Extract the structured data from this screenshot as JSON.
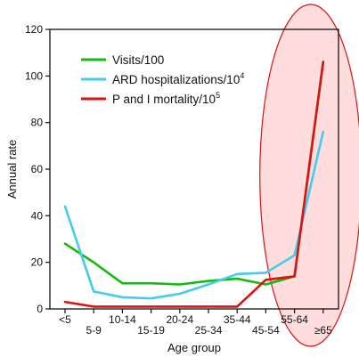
{
  "chart_data": {
    "type": "line",
    "xlabel": "Age group",
    "ylabel": "Annual rate",
    "ylim": [
      0,
      120
    ],
    "yticks": [
      0,
      20,
      40,
      60,
      80,
      100,
      120
    ],
    "categories": [
      "<5",
      "5-9",
      "10-14",
      "15-19",
      "20-24",
      "25-34",
      "35-44",
      "45-54",
      "55-64",
      "≥65"
    ],
    "legend_position": "top-left",
    "grid": false,
    "series": [
      {
        "name": "Visits/100",
        "legend_base": "Visits/100",
        "legend_sup": "",
        "color": "#11bb11",
        "values": [
          28,
          20,
          11,
          11,
          10.5,
          12,
          13,
          10.5,
          14,
          106
        ]
      },
      {
        "name": "ARD hospitalizations/10^4",
        "legend_base": "ARD hospitalizations/10",
        "legend_sup": "4",
        "color": "#44ccee",
        "values": [
          44,
          7.5,
          5,
          4.5,
          6.5,
          10.5,
          15,
          15.5,
          23,
          76
        ]
      },
      {
        "name": "P and I mortality/10^5",
        "legend_base": "P and I mortality/10",
        "legend_sup": "5",
        "color": "#dd1111",
        "values": [
          3,
          1,
          1,
          1,
          1,
          1,
          1,
          12.5,
          14,
          106
        ]
      }
    ],
    "highlight": {
      "shape": "ellipse",
      "covers_categories": [
        "55-64",
        "≥65"
      ],
      "stroke_color": "#dd1111",
      "fill_color": "#ffdddd"
    }
  }
}
